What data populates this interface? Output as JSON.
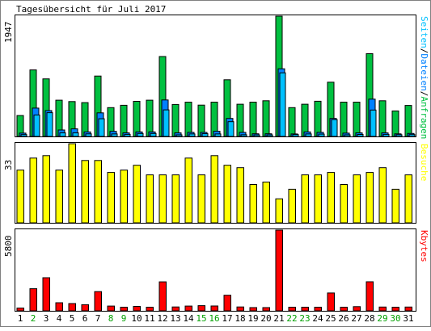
{
  "chart_data": {
    "title": "Tagesübersicht für Juli 2017",
    "days": [
      "1",
      "2",
      "3",
      "4",
      "5",
      "6",
      "7",
      "8",
      "9",
      "10",
      "11",
      "12",
      "13",
      "14",
      "15",
      "16",
      "17",
      "18",
      "19",
      "20",
      "21",
      "22",
      "23",
      "24",
      "25",
      "26",
      "27",
      "28",
      "29",
      "30",
      "31"
    ],
    "weekend_days": [
      "2",
      "8",
      "9",
      "15",
      "16",
      "22",
      "23",
      "29",
      "30"
    ],
    "colors": {
      "anfragen": "#00c040",
      "dateien": "#0080ff",
      "seiten": "#00c0ff",
      "besuche": "#ffff00",
      "kbytes": "#ff0000",
      "weekday_label": "#000000",
      "weekend_label": "#00a000"
    },
    "panels": [
      {
        "type": "bar",
        "legend": [
          {
            "text": "Anfragen",
            "color": "#00c040"
          },
          {
            "text": "Dateien",
            "color": "#0080ff"
          },
          {
            "text": "Seiten",
            "color": "#00c0ff"
          }
        ],
        "legend_separator": "/",
        "ymax_label": "1947",
        "ylim": [
          0,
          1947
        ],
        "series": [
          {
            "name": "Anfragen",
            "values": [
              338,
              1077,
              932,
              587,
              565,
              548,
              978,
              467,
              505,
              569,
              587,
              1293,
              517,
              556,
              507,
              556,
              917,
              521,
              556,
              578,
              1947,
              467,
              521,
              570,
              878,
              556,
              556,
              1339,
              578,
              413,
              502
            ]
          },
          {
            "name": "Dateien",
            "values": [
              53,
              459,
              418,
              105,
              123,
              73,
              382,
              82,
              58,
              73,
              73,
              590,
              58,
              65,
              65,
              84,
              292,
              65,
              43,
              43,
              1095,
              40,
              73,
              65,
              291,
              53,
              58,
              604,
              58,
              42,
              49
            ]
          },
          {
            "name": "Seiten",
            "values": [
              30,
              347,
              384,
              58,
              58,
              42,
              286,
              41,
              34,
              48,
              48,
              430,
              26,
              40,
              45,
              40,
              239,
              28,
              25,
              25,
              1030,
              30,
              40,
              38,
              273,
              26,
              33,
              427,
              34,
              28,
              30
            ]
          }
        ]
      },
      {
        "type": "bar",
        "legend": [
          {
            "text": "Besuche",
            "color": "#ffff00"
          }
        ],
        "ymax_label": "33",
        "ylim": [
          0,
          33
        ],
        "series": [
          {
            "name": "Besuche",
            "values": [
              22,
              27,
              28,
              22,
              33,
              26,
              26,
              21,
              22,
              24,
              20,
              20,
              20,
              27,
              20,
              28,
              24,
              23,
              16,
              17,
              10,
              14,
              20,
              20,
              21,
              16,
              20,
              21,
              23,
              14,
              20
            ]
          }
        ]
      },
      {
        "type": "bar",
        "legend": [
          {
            "text": "Kbytes",
            "color": "#ff0000"
          }
        ],
        "ymax_label": "5800",
        "ylim": [
          0,
          5800
        ],
        "series": [
          {
            "name": "Kbytes",
            "values": [
              200,
              1590,
              2380,
              580,
              520,
              440,
              1380,
              340,
              260,
              320,
              260,
              2080,
              280,
              340,
              370,
              350,
              1120,
              280,
              230,
              230,
              5800,
              260,
              260,
              260,
              1280,
              260,
              300,
              2090,
              270,
              260,
              270
            ]
          }
        ]
      }
    ]
  }
}
